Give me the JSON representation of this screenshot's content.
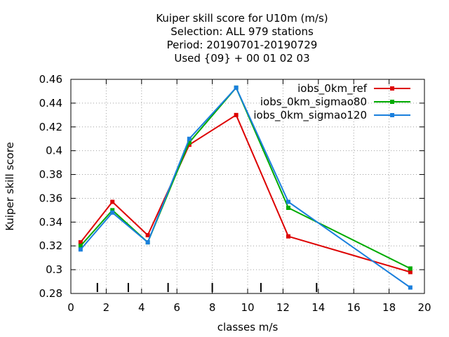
{
  "chart_data": {
    "type": "line",
    "title_lines": [
      "Kuiper skill score  for U10m (m/s)",
      "Selection: ALL    979 stations",
      "Period: 20190701-20190729",
      "Used {09} + 00 01 02 03"
    ],
    "xlabel": "classes m/s",
    "ylabel": "Kuiper skill score",
    "xlim": [
      0,
      20
    ],
    "ylim": [
      0.28,
      0.46
    ],
    "xticks": [
      "0",
      "2",
      "4",
      "6",
      "8",
      "10",
      "12",
      "14",
      "16",
      "18",
      "20"
    ],
    "yticks": [
      "0.28",
      "0.3",
      "0.32",
      "0.34",
      "0.36",
      "0.38",
      "0.4",
      "0.42",
      "0.44",
      "0.46"
    ],
    "grid": true,
    "legend_position": "top-right",
    "class_boundaries": [
      1.5,
      3.25,
      5.5,
      8.0,
      10.75,
      13.9
    ],
    "series": [
      {
        "name": "iobs_0km_ref",
        "color": "#dd0000",
        "x": [
          0.55,
          2.35,
          4.35,
          6.7,
          9.35,
          12.3,
          19.2
        ],
        "values": [
          0.323,
          0.357,
          0.329,
          0.405,
          0.43,
          0.328,
          0.298
        ]
      },
      {
        "name": "iobs_0km_sigmao80",
        "color": "#00aa00",
        "x": [
          0.55,
          2.35,
          4.35,
          6.7,
          9.35,
          12.3,
          19.2
        ],
        "values": [
          0.32,
          0.35,
          0.323,
          0.407,
          0.453,
          0.352,
          0.301
        ]
      },
      {
        "name": "iobs_0km_sigmao120",
        "color": "#1a7fdd",
        "x": [
          0.55,
          2.35,
          4.35,
          6.7,
          9.35,
          12.3,
          19.2
        ],
        "values": [
          0.317,
          0.348,
          0.323,
          0.41,
          0.453,
          0.357,
          0.285
        ]
      }
    ]
  }
}
